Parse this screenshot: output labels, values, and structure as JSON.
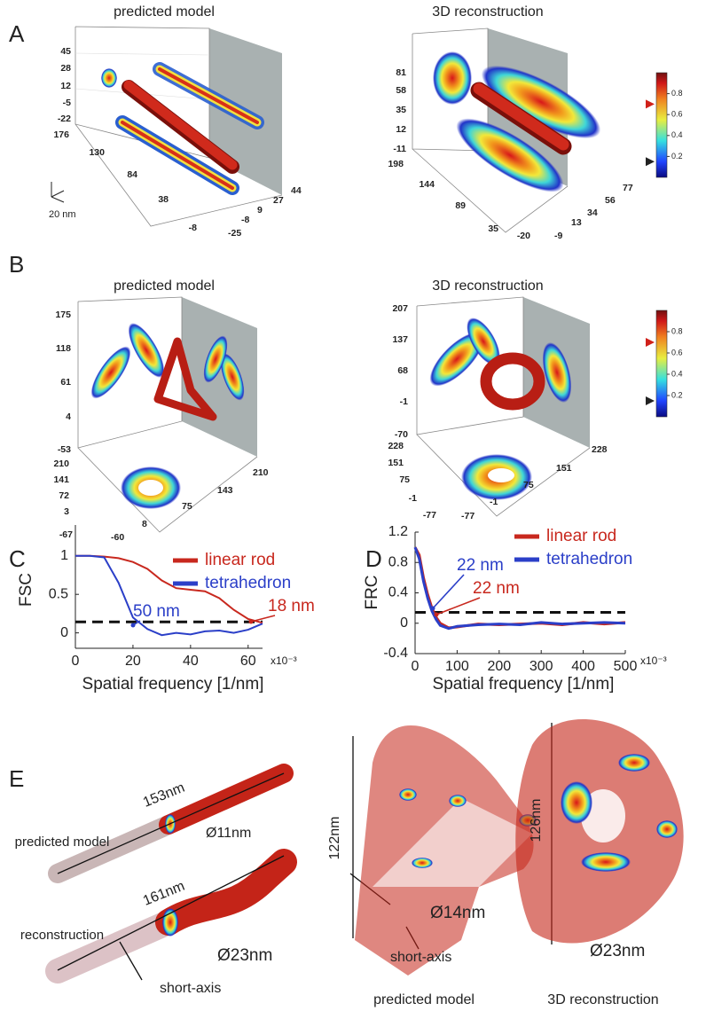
{
  "panel_a": {
    "label": "A",
    "scale_label": "20 nm",
    "left": {
      "title": "predicted model",
      "z_ticks": [
        45,
        28,
        12,
        -5,
        -22
      ],
      "y_ticks": [
        176,
        130,
        84,
        38,
        -8
      ],
      "x_ticks": [
        -25,
        -8,
        9,
        27,
        44
      ]
    },
    "right": {
      "title": "3D reconstruction",
      "z_ticks": [
        81,
        58,
        35,
        12,
        -11
      ],
      "y_ticks": [
        198,
        144,
        89,
        35,
        -20
      ],
      "x_ticks": [
        -9,
        13,
        34,
        56,
        77
      ]
    },
    "colorbar": {
      "lim": [
        0,
        1
      ],
      "ticks": [
        0.8,
        0.6,
        0.4,
        0.2
      ],
      "markers": [
        {
          "value": 0.7,
          "color": "#d0201a"
        },
        {
          "value": 0.15,
          "color": "#222222"
        }
      ]
    }
  },
  "panel_b": {
    "label": "B",
    "left": {
      "title": "predicted model",
      "z_ticks": [
        175,
        118,
        61,
        4,
        -53
      ],
      "y_ticks": [
        210,
        141,
        72,
        3,
        -67
      ],
      "x_ticks": [
        -60,
        8,
        75,
        143,
        210
      ]
    },
    "right": {
      "title": "3D reconstruction",
      "z_ticks": [
        207,
        137,
        68,
        -1,
        -70
      ],
      "y_ticks": [
        228,
        151,
        75,
        -1,
        -77
      ],
      "x_ticks": [
        -77,
        -1,
        75,
        151,
        228
      ]
    },
    "colorbar": {
      "lim": [
        0,
        1
      ],
      "ticks": [
        0.8,
        0.6,
        0.4,
        0.2
      ],
      "markers": [
        {
          "value": 0.7,
          "color": "#d0201a"
        },
        {
          "value": 0.15,
          "color": "#222222"
        }
      ]
    }
  },
  "chart_data": [
    {
      "panel_label": "C",
      "type": "line",
      "y_label": "FSC",
      "x_label": "Spatial frequency [1/nm]",
      "x_multiplier": "x10⁻³",
      "x": [
        0,
        5,
        10,
        15,
        20,
        25,
        30,
        35,
        40,
        45,
        50,
        55,
        60,
        65
      ],
      "series": [
        {
          "name": "linear rod",
          "color": "#c8281e",
          "values": [
            1,
            1,
            0.99,
            0.97,
            0.92,
            0.83,
            0.68,
            0.58,
            0.56,
            0.54,
            0.45,
            0.3,
            0.18,
            0.13
          ]
        },
        {
          "name": "tetrahedron",
          "color": "#2b3fc8",
          "values": [
            1,
            1,
            0.98,
            0.65,
            0.2,
            0.05,
            -0.03,
            0,
            -0.02,
            0.02,
            0.03,
            0,
            0.04,
            0.12
          ]
        }
      ],
      "xlim": [
        0,
        65
      ],
      "ylim": [
        -0.2,
        1.4
      ],
      "xticks": [
        0,
        20,
        40,
        60
      ],
      "yticks": [
        0,
        0.5,
        1
      ],
      "threshold": 0.143,
      "annotations": [
        {
          "text": "50 nm",
          "color": "#2b3fc8"
        },
        {
          "text": "18 nm",
          "color": "#c8281e"
        }
      ]
    },
    {
      "panel_label": "D",
      "type": "line",
      "y_label": "FRC",
      "x_label": "Spatial frequency [1/nm]",
      "x_multiplier": "x10⁻³",
      "x": [
        0,
        10,
        20,
        30,
        40,
        50,
        60,
        80,
        100,
        150,
        200,
        250,
        300,
        350,
        400,
        450,
        500
      ],
      "series": [
        {
          "name": "linear rod",
          "color": "#c8281e",
          "values": [
            1,
            0.9,
            0.6,
            0.38,
            0.2,
            0.08,
            0,
            -0.06,
            -0.05,
            -0.01,
            -0.02,
            -0.01,
            0,
            -0.02,
            0.01,
            -0.01,
            0.01
          ]
        },
        {
          "name": "tetrahedron",
          "color": "#2b3fc8",
          "values": [
            1,
            0.85,
            0.55,
            0.33,
            0.16,
            0.05,
            -0.03,
            -0.07,
            -0.04,
            -0.02,
            -0.01,
            -0.02,
            0.01,
            -0.01,
            0,
            0.01,
            0
          ]
        }
      ],
      "xlim": [
        0,
        500
      ],
      "ylim": [
        -0.4,
        1.2
      ],
      "xticks": [
        0,
        100,
        200,
        300,
        400,
        500
      ],
      "yticks": [
        -0.4,
        0,
        0.4,
        0.8,
        1.2
      ],
      "threshold": 0.143,
      "annotations": [
        {
          "text": "22 nm",
          "color": "#2b3fc8"
        },
        {
          "text": "22 nm",
          "color": "#c8281e"
        }
      ]
    }
  ],
  "panel_e": {
    "label": "E",
    "rod_model_length": "153nm",
    "rod_model_label": "predicted model",
    "rod_model_diameter": "Ø11nm",
    "rod_recon_length": "161nm",
    "rod_recon_label": "reconstruction",
    "rod_recon_diameter": "Ø23nm",
    "rod_short_axis": "short-axis",
    "tet_model_length": "122nm",
    "tet_model_diameter": "Ø14nm",
    "tet_short_axis": "short-axis",
    "tet_model_caption": "predicted model",
    "tet_recon_length": "126nm",
    "tet_recon_diameter": "Ø23nm",
    "tet_recon_caption": "3D reconstruction"
  }
}
